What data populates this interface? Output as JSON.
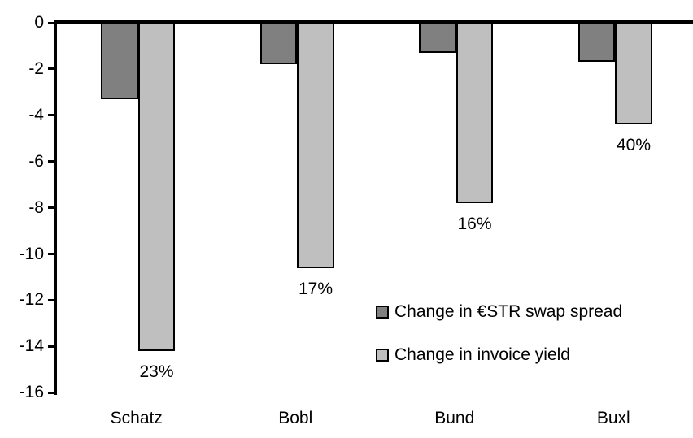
{
  "chart_data": {
    "type": "bar",
    "title": "",
    "xlabel": "",
    "ylabel": "",
    "categories": [
      "Schatz",
      "Bobl",
      "Bund",
      "Buxl"
    ],
    "series": [
      {
        "name": "Change in €STR swap spread",
        "color": "#808080",
        "values": [
          -3.3,
          -1.8,
          -1.3,
          -1.7
        ],
        "data_labels": [
          "",
          "",
          "",
          ""
        ]
      },
      {
        "name": "Change in invoice yield",
        "color": "#bfbfbf",
        "values": [
          -14.2,
          -10.6,
          -7.8,
          -4.4
        ],
        "data_labels": [
          "23%",
          "17%",
          "16%",
          "40%"
        ]
      }
    ],
    "ylim": [
      -16,
      0
    ],
    "yticks": [
      0,
      -2,
      -4,
      -6,
      -8,
      -10,
      -12,
      -14,
      -16
    ],
    "grid": false,
    "legend_position": "inside-right",
    "bar_border_color": "#000000",
    "axis_color": "#000000",
    "background_color": "#ffffff"
  }
}
